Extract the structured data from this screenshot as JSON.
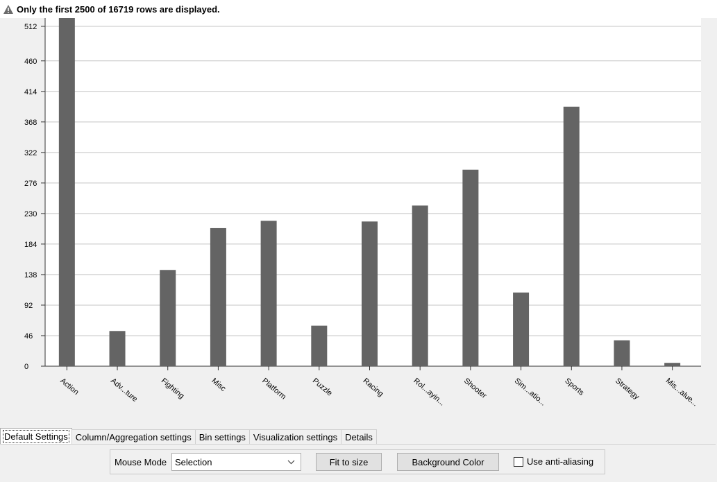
{
  "warning": {
    "text": "Only the first 2500 of 16719 rows are displayed.",
    "icon": "warning-icon"
  },
  "chart_data": {
    "type": "bar",
    "title": "",
    "xlabel": "",
    "ylabel": "",
    "ylim": [
      0,
      540
    ],
    "y_ticks": [
      0,
      46,
      92,
      138,
      184,
      230,
      276,
      322,
      368,
      414,
      460,
      512
    ],
    "grid": true,
    "categories": [
      "Action",
      "Adv...ture",
      "Fighting",
      "Misc",
      "Platform",
      "Puzzle",
      "Racing",
      "Rol...ayin...",
      "Shooter",
      "Sim...atio...",
      "Sports",
      "Strategy",
      "Mis...alue..."
    ],
    "values": [
      540,
      53,
      145,
      208,
      219,
      61,
      218,
      242,
      296,
      111,
      391,
      39,
      5
    ],
    "bar_color": "#646464"
  },
  "tabs": [
    {
      "label": "Default Settings",
      "active": true
    },
    {
      "label": "Column/Aggregation settings",
      "active": false
    },
    {
      "label": "Bin settings",
      "active": false
    },
    {
      "label": "Visualization settings",
      "active": false
    },
    {
      "label": "Details",
      "active": false
    }
  ],
  "controls": {
    "mouse_mode_label": "Mouse Mode",
    "mouse_mode_value": "Selection",
    "fit_to_size_label": "Fit to size",
    "background_color_label": "Background Color",
    "anti_aliasing_label": "Use anti-aliasing",
    "anti_aliasing_checked": false
  }
}
